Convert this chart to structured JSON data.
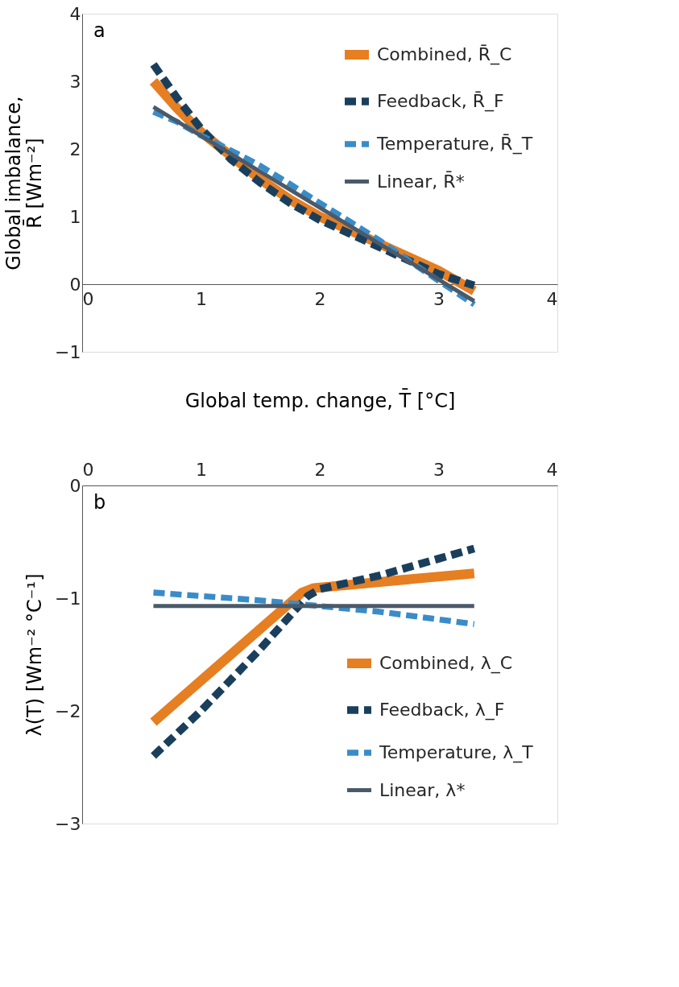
{
  "chart_data": [
    {
      "type": "line",
      "annotations": [
        "a"
      ],
      "xlabel": "Global temp. change, T̄  [°C]",
      "ylabel": [
        "Global imbalance,",
        "R̄  [Wm⁻²]"
      ],
      "xlim": [
        0,
        4
      ],
      "xticks": [
        0,
        1,
        2,
        3,
        4
      ],
      "ylim": [
        -1,
        4
      ],
      "yticks": [
        -1,
        0,
        1,
        2,
        3,
        4
      ],
      "grid": false,
      "legend": "top right",
      "series": [
        {
          "name": "Combined, R̄_C",
          "color": "#e67e22",
          "line_style": "solid",
          "x": [
            0.6,
            0.8,
            1.0,
            1.25,
            1.5,
            1.75,
            2.0,
            2.25,
            2.5,
            2.75,
            3.0,
            3.3
          ],
          "values": [
            3.0,
            2.6,
            2.25,
            1.9,
            1.55,
            1.25,
            1.0,
            0.8,
            0.6,
            0.4,
            0.2,
            -0.1
          ]
        },
        {
          "name": "Feedback,  R̄_F",
          "color": "#1a3f5c",
          "line_style": "dashed",
          "x": [
            0.6,
            0.8,
            1.0,
            1.25,
            1.5,
            1.75,
            2.0,
            2.25,
            2.5,
            2.75,
            3.0,
            3.3
          ],
          "values": [
            3.25,
            2.75,
            2.3,
            1.85,
            1.5,
            1.2,
            0.95,
            0.75,
            0.55,
            0.35,
            0.15,
            -0.02
          ]
        },
        {
          "name": "Temperature, R̄_T",
          "color": "#3a8cc8",
          "line_style": "dashed",
          "x": [
            0.6,
            0.8,
            1.0,
            1.25,
            1.5,
            1.75,
            2.0,
            2.25,
            2.5,
            2.75,
            3.0,
            3.3
          ],
          "values": [
            2.55,
            2.4,
            2.2,
            1.98,
            1.75,
            1.48,
            1.2,
            0.93,
            0.65,
            0.35,
            0.05,
            -0.3
          ]
        },
        {
          "name": "Linear, R̄*",
          "color": "#4a5a6a",
          "line_style": "solid",
          "x": [
            0.6,
            3.3
          ],
          "values": [
            2.62,
            -0.25
          ]
        }
      ]
    },
    {
      "type": "line",
      "annotations": [
        "b"
      ],
      "ylabel": "λ(T)  [Wm⁻² °C⁻¹]",
      "xlim": [
        0,
        4
      ],
      "xticks": [
        0,
        1,
        2,
        3,
        4
      ],
      "ylim": [
        -3,
        0
      ],
      "yticks": [
        -3,
        -2,
        -1,
        0
      ],
      "grid": false,
      "legend": "bottom right",
      "series": [
        {
          "name": "Combined, λ_C",
          "color": "#e67e22",
          "line_style": "solid",
          "x": [
            0.6,
            1.85,
            1.95,
            3.3
          ],
          "values": [
            -2.1,
            -0.95,
            -0.91,
            -0.78
          ]
        },
        {
          "name": "Feedback, λ_F",
          "color": "#1a3f5c",
          "line_style": "dashed",
          "x": [
            0.6,
            1.0,
            1.5,
            1.9,
            2.0,
            2.5,
            3.0,
            3.3
          ],
          "values": [
            -2.4,
            -2.0,
            -1.45,
            -0.98,
            -0.92,
            -0.8,
            -0.65,
            -0.56
          ]
        },
        {
          "name": "Temperature, λ_T",
          "color": "#3a8cc8",
          "line_style": "dashed",
          "x": [
            0.6,
            1.5,
            2.0,
            2.5,
            3.3
          ],
          "values": [
            -0.95,
            -1.02,
            -1.07,
            -1.12,
            -1.23
          ]
        },
        {
          "name": "Linear, λ*",
          "color": "#4a5a6a",
          "line_style": "solid",
          "x": [
            0.6,
            3.3
          ],
          "values": [
            -1.07,
            -1.07
          ]
        }
      ]
    }
  ]
}
